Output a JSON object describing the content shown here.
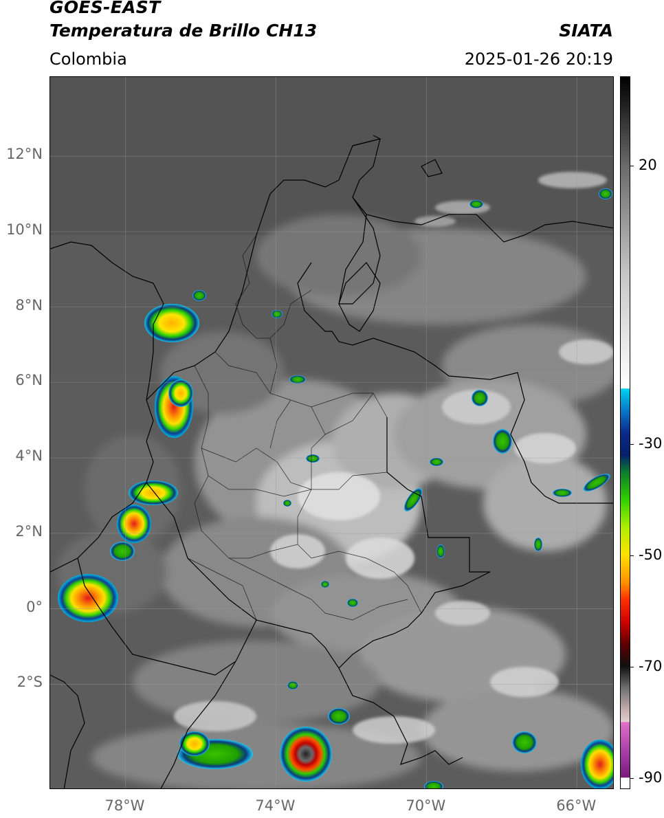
{
  "header": {
    "satellite": "GOES-EAST",
    "product": "Temperatura de Brillo CH13",
    "region": "Colombia",
    "agency": "SIATA",
    "datetime": "2025-01-26 20:19"
  },
  "map": {
    "lat_labels": [
      "12°N",
      "10°N",
      "8°N",
      "6°N",
      "4°N",
      "2°N",
      "0°",
      "2°S"
    ],
    "lon_labels": [
      "78°W",
      "74°W",
      "70°W",
      "66°W"
    ],
    "latitudes": [
      12,
      10,
      8,
      6,
      4,
      2,
      0,
      -2
    ],
    "longitudes": [
      -78,
      -74,
      -70,
      -66
    ],
    "extent": {
      "lon_min": -80,
      "lon_max": -65,
      "lat_min": -4.8,
      "lat_max": 14.1
    }
  },
  "colorbar": {
    "labels": [
      "20",
      "-30",
      "-50",
      "-70",
      "-90"
    ],
    "values": [
      20,
      -30,
      -50,
      -70,
      -90
    ],
    "range": [
      -92,
      36
    ],
    "units": ""
  }
}
